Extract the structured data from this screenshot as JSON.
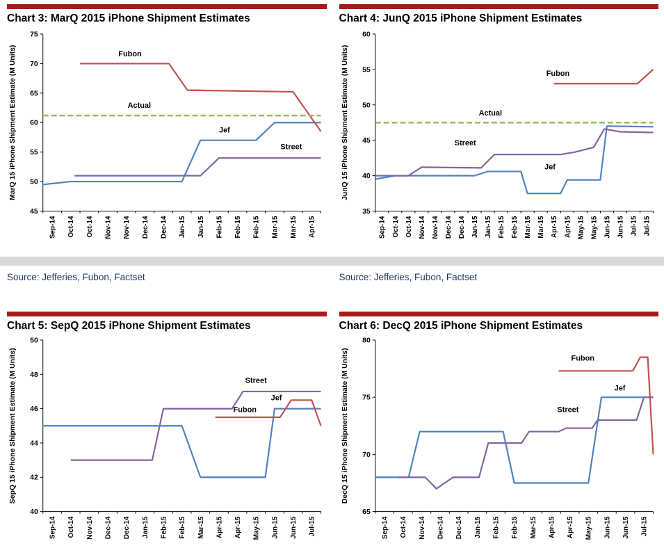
{
  "theme": {
    "header_bar_color": "#A61C1C",
    "divider_color": "#D9D9D9",
    "source_text_color": "#1F3864",
    "axis_color": "#000000",
    "series_colors": {
      "jef": "#4F81BD",
      "street": "#8064A2",
      "fubon": "#C0504D",
      "actual": "#9BBB59"
    }
  },
  "sources": {
    "left": "Source: Jefferies, Fubon, Factset",
    "right": "Source: Jefferies, Fubon, Factset"
  },
  "chart_data": [
    {
      "id": "chart-3",
      "type": "line",
      "title": "Chart 3: MarQ 2015 iPhone Shipment Estimates",
      "ylabel": "MarQ 15 iPhone Shipment Estimate (M Units)",
      "ylim": [
        45,
        75
      ],
      "ytick_step": 5,
      "grid": false,
      "categories": [
        "Sep-14",
        "Oct-14",
        "Oct-14",
        "Nov-14",
        "Nov-14",
        "Dec-14",
        "Dec-14",
        "Jan-15",
        "Jan-15",
        "Feb-15",
        "Feb-15",
        "Feb-15",
        "Mar-15",
        "Mar-15",
        "Apr-15"
      ],
      "series": [
        {
          "name": "Jef",
          "color": "#4F81BD",
          "points": [
            [
              -0.5,
              49.5
            ],
            [
              1,
              50
            ],
            [
              7,
              50
            ],
            [
              8,
              57
            ],
            [
              11,
              57
            ],
            [
              12,
              60
            ],
            [
              14.5,
              60
            ]
          ],
          "label": {
            "x": 9.3,
            "y": 58.3
          }
        },
        {
          "name": "Street",
          "color": "#8064A2",
          "points": [
            [
              1.2,
              51
            ],
            [
              8,
              51
            ],
            [
              9,
              54
            ],
            [
              14.5,
              54
            ]
          ],
          "label": {
            "x": 12.9,
            "y": 55.5
          }
        },
        {
          "name": "Fubon",
          "color": "#C0504D",
          "points": [
            [
              1.5,
              70
            ],
            [
              6.3,
              70
            ],
            [
              7.3,
              65.5
            ],
            [
              13,
              65.2
            ],
            [
              14.5,
              58.5
            ]
          ],
          "label": {
            "x": 4.2,
            "y": 71.2
          }
        },
        {
          "name": "Actual",
          "color": "#9BBB59",
          "dash": "8 4",
          "points": [
            [
              -0.5,
              61.2
            ],
            [
              14.5,
              61.2
            ]
          ],
          "label": {
            "x": 4.7,
            "y": 62.5
          }
        }
      ]
    },
    {
      "id": "chart-4",
      "type": "line",
      "title": "Chart 4: JunQ 2015 iPhone Shipment Estimates",
      "ylabel": "JunQ 15 iPhone Shipment Estimate (M Units)",
      "ylim": [
        35,
        60
      ],
      "ytick_step": 5,
      "grid": false,
      "categories": [
        "Sep-14",
        "Oct-14",
        "Oct-14",
        "Nov-14",
        "Nov-14",
        "Dec-14",
        "Dec-14",
        "Jan-15",
        "Jan-15",
        "Feb-15",
        "Feb-15",
        "Mar-15",
        "Mar-15",
        "Apr-15",
        "Apr-15",
        "May-15",
        "May-15",
        "Jun-15",
        "Jun-15",
        "Jul-15",
        "Jul-15"
      ],
      "series": [
        {
          "name": "Jef",
          "color": "#4F81BD",
          "points": [
            [
              -0.5,
              39.5
            ],
            [
              1,
              40
            ],
            [
              7,
              40
            ],
            [
              8,
              40.6
            ],
            [
              10.5,
              40.6
            ],
            [
              11,
              37.5
            ],
            [
              13.5,
              37.5
            ],
            [
              14,
              39.4
            ],
            [
              16.5,
              39.4
            ],
            [
              17,
              47
            ],
            [
              20.5,
              46.9
            ]
          ],
          "label": {
            "x": 12.7,
            "y": 40.9
          }
        },
        {
          "name": "Street",
          "color": "#8064A2",
          "points": [
            [
              -0.5,
              40
            ],
            [
              2,
              40
            ],
            [
              3,
              41.2
            ],
            [
              7.5,
              41.1
            ],
            [
              8.5,
              43
            ],
            [
              13.5,
              43
            ],
            [
              14.5,
              43.3
            ],
            [
              16,
              44
            ],
            [
              16.8,
              46.6
            ],
            [
              18,
              46.2
            ],
            [
              20.5,
              46.1
            ]
          ],
          "label": {
            "x": 6.3,
            "y": 44.3
          }
        },
        {
          "name": "Fubon",
          "color": "#C0504D",
          "points": [
            [
              13,
              53
            ],
            [
              19.3,
              53
            ],
            [
              20.5,
              55
            ]
          ],
          "label": {
            "x": 13.3,
            "y": 54.1
          }
        },
        {
          "name": "Actual",
          "color": "#9BBB59",
          "dash": "8 4",
          "points": [
            [
              -0.5,
              47.5
            ],
            [
              20.5,
              47.5
            ]
          ],
          "label": {
            "x": 8.2,
            "y": 48.5
          }
        }
      ]
    },
    {
      "id": "chart-5",
      "type": "line",
      "title": "Chart 5: SepQ 2015 iPhone Shipment Estimates",
      "ylabel": "SepQ 15 iPhone Shipment Estimate (M Units)",
      "ylim": [
        40,
        50
      ],
      "ytick_step": 2,
      "grid": false,
      "categories": [
        "Sep-14",
        "Oct-14",
        "Nov-14",
        "Dec-14",
        "Dec-14",
        "Jan-15",
        "Feb-15",
        "Feb-15",
        "Mar-15",
        "Apr-15",
        "Apr-15",
        "May-15",
        "Jun-15",
        "Jun-15",
        "Jul-15"
      ],
      "series": [
        {
          "name": "Jef",
          "color": "#4F81BD",
          "points": [
            [
              -0.5,
              45
            ],
            [
              7,
              45
            ],
            [
              8,
              42
            ],
            [
              11.5,
              42
            ],
            [
              12,
              46
            ],
            [
              14.5,
              46
            ]
          ],
          "label": {
            "x": 12.1,
            "y": 46.5
          }
        },
        {
          "name": "Street",
          "color": "#8064A2",
          "points": [
            [
              1,
              43
            ],
            [
              5.4,
              43
            ],
            [
              6,
              46
            ],
            [
              9.7,
              46
            ],
            [
              10.3,
              47
            ],
            [
              14.5,
              47
            ]
          ],
          "label": {
            "x": 11,
            "y": 47.5
          }
        },
        {
          "name": "Fubon",
          "color": "#C0504D",
          "points": [
            [
              8.8,
              45.5
            ],
            [
              12.3,
              45.5
            ],
            [
              12.9,
              46.5
            ],
            [
              14,
              46.5
            ],
            [
              14.5,
              45
            ]
          ],
          "label": {
            "x": 10.4,
            "y": 45.8
          }
        }
      ]
    },
    {
      "id": "chart-6",
      "type": "line",
      "title": "Chart 6: DecQ 2015 iPhone Shipment Estimates",
      "ylabel": "DecQ 15 iPhone Shipment Estimate (M Units)",
      "ylim": [
        65,
        80
      ],
      "ytick_step": 5,
      "grid": false,
      "categories": [
        "Sep-14",
        "Oct-14",
        "Nov-14",
        "Dec-14",
        "Dec-14",
        "Jan-15",
        "Feb-15",
        "Feb-15",
        "Mar-15",
        "Apr-15",
        "Apr-15",
        "May-15",
        "Jun-15",
        "Jun-15",
        "Jul-15"
      ],
      "series": [
        {
          "name": "Jef",
          "color": "#4F81BD",
          "points": [
            [
              -0.5,
              68
            ],
            [
              1.3,
              68
            ],
            [
              1.9,
              72
            ],
            [
              6.4,
              72
            ],
            [
              7,
              67.5
            ],
            [
              11,
              67.5
            ],
            [
              11.7,
              75
            ],
            [
              14.5,
              75
            ]
          ],
          "label": {
            "x": 12.7,
            "y": 75.6
          }
        },
        {
          "name": "Street",
          "color": "#8064A2",
          "points": [
            [
              0.7,
              68
            ],
            [
              2.2,
              68
            ],
            [
              2.8,
              67
            ],
            [
              3.7,
              68
            ],
            [
              5.1,
              68
            ],
            [
              5.6,
              71
            ],
            [
              7.4,
              71
            ],
            [
              7.8,
              72
            ],
            [
              9.4,
              72
            ],
            [
              9.8,
              72.3
            ],
            [
              11.2,
              72.3
            ],
            [
              11.5,
              73
            ],
            [
              13.6,
              73
            ],
            [
              14,
              75
            ],
            [
              14.5,
              75
            ]
          ],
          "label": {
            "x": 9.9,
            "y": 73.7
          }
        },
        {
          "name": "Fubon",
          "color": "#C0504D",
          "points": [
            [
              9.4,
              77.3
            ],
            [
              13.4,
              77.3
            ],
            [
              13.8,
              78.5
            ],
            [
              14.2,
              78.5
            ],
            [
              14.5,
              70
            ]
          ],
          "label": {
            "x": 10.7,
            "y": 78.2
          }
        }
      ]
    }
  ]
}
